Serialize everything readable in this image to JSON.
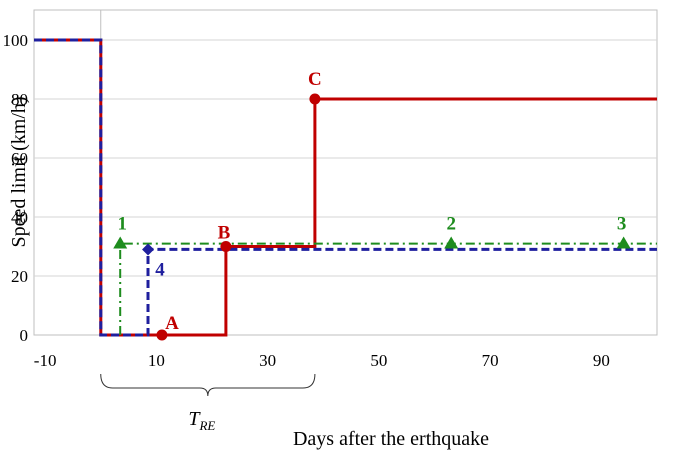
{
  "chart_data": {
    "type": "line",
    "xlabel": "Days after the erthquake",
    "ylabel": "Speed limit (km/h)",
    "xlim": [
      -12,
      100
    ],
    "ylim": [
      0,
      110
    ],
    "x_ticks": [
      -10,
      10,
      30,
      50,
      70,
      90
    ],
    "x_tick_labels": [
      "-10",
      "10",
      "30",
      "50",
      "70",
      "90"
    ],
    "y_ticks": [
      0,
      20,
      40,
      60,
      80,
      100
    ],
    "y_tick_labels": [
      "0",
      "20",
      "40",
      "60",
      "80",
      "100"
    ],
    "grid": "horizontal",
    "vline_x": 0,
    "interval_label": {
      "main": "T",
      "sub": "RE",
      "x_start": 0,
      "x_end": 38.5
    },
    "series": [
      {
        "style": "solid",
        "color": "#c00000",
        "x": [
          -12,
          0,
          0,
          22.5,
          22.5,
          38.5,
          38.5,
          100
        ],
        "y": [
          100,
          100,
          0,
          0,
          30,
          30,
          80,
          80
        ]
      },
      {
        "style": "dashed",
        "color": "#1f1f9e",
        "x": [
          -12,
          0,
          0,
          8.5,
          8.5,
          100
        ],
        "y": [
          100,
          100,
          0,
          0,
          29,
          29
        ]
      },
      {
        "style": "dashdot",
        "color": "#1e8c1e",
        "x": [
          3.5,
          3.5,
          100
        ],
        "y": [
          0,
          31,
          31
        ]
      }
    ],
    "annotations": [
      {
        "label": "A",
        "x": 11,
        "y": 0,
        "marker": "circle",
        "color": "#c00000",
        "dx": 10,
        "dy": -6
      },
      {
        "label": "B",
        "x": 22.5,
        "y": 30,
        "marker": "circle",
        "color": "#c00000",
        "dx": -2,
        "dy": -8
      },
      {
        "label": "C",
        "x": 38.5,
        "y": 80,
        "marker": "circle",
        "color": "#c00000",
        "dx": 0,
        "dy": -14
      },
      {
        "label": "1",
        "x": 3.5,
        "y": 31,
        "marker": "triangle",
        "color": "#1e8c1e",
        "dx": 2,
        "dy": -14
      },
      {
        "label": "2",
        "x": 63,
        "y": 31,
        "marker": "triangle",
        "color": "#1e8c1e",
        "dx": 0,
        "dy": -14
      },
      {
        "label": "3",
        "x": 94,
        "y": 31,
        "marker": "triangle",
        "color": "#1e8c1e",
        "dx": -2,
        "dy": -14
      },
      {
        "label": "4",
        "x": 8.5,
        "y": 29,
        "marker": "diamond",
        "color": "#1f1f9e",
        "dx": 12,
        "dy": 26
      }
    ]
  }
}
